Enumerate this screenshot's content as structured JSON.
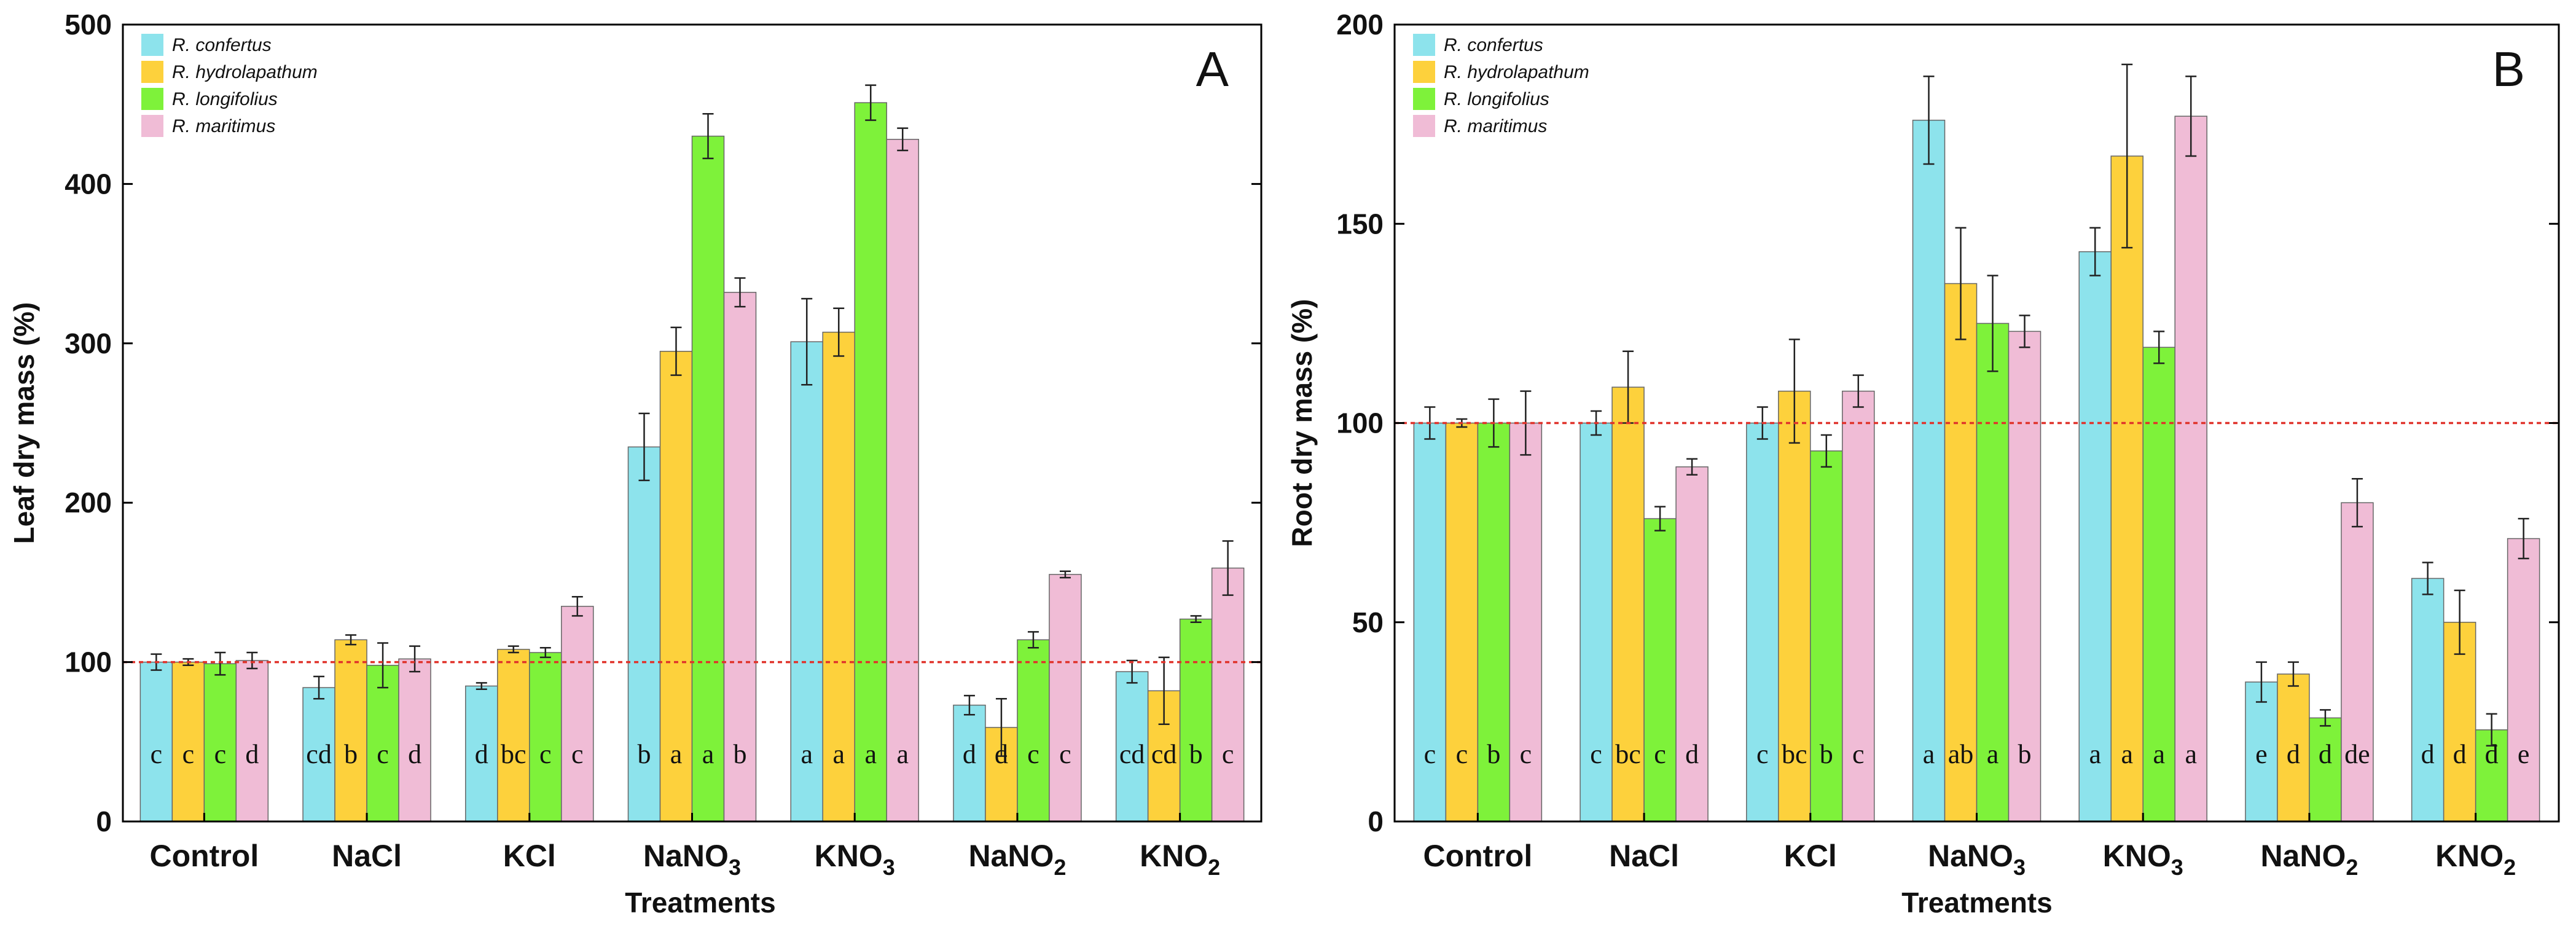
{
  "series_colors": [
    "#8de3ec",
    "#fdd13c",
    "#7ef23a",
    "#f0bcd6"
  ],
  "chart_data": [
    {
      "type": "bar",
      "panel": "A",
      "ylabel": "Leaf dry mass (%)",
      "xlabel": "Treatments",
      "ylim": [
        0,
        500
      ],
      "yticks": [
        0,
        100,
        200,
        300,
        400,
        500
      ],
      "reference_line": 100,
      "categories": [
        "Control",
        "NaCl",
        "KCl",
        "NaNO3",
        "KNO3",
        "NaNO2",
        "KNO2"
      ],
      "category_labels": [
        {
          "base": "Control",
          "sub": ""
        },
        {
          "base": "NaCl",
          "sub": ""
        },
        {
          "base": "KCl",
          "sub": ""
        },
        {
          "base": "NaNO",
          "sub": "3"
        },
        {
          "base": "KNO",
          "sub": "3"
        },
        {
          "base": "NaNO",
          "sub": "2"
        },
        {
          "base": "KNO",
          "sub": "2"
        }
      ],
      "legend_position": "top-left",
      "series": [
        {
          "name": "R. confertus",
          "values": [
            100,
            84,
            85,
            235,
            301,
            73,
            94
          ],
          "errors": [
            5,
            7,
            2,
            21,
            27,
            6,
            7
          ],
          "letters": [
            "c",
            "cd",
            "d",
            "b",
            "a",
            "d",
            "cd"
          ]
        },
        {
          "name": "R. hydrolapathum",
          "values": [
            100,
            114,
            108,
            295,
            307,
            59,
            82
          ],
          "errors": [
            2,
            3,
            2,
            15,
            15,
            18,
            21
          ],
          "letters": [
            "c",
            "b",
            "bc",
            "a",
            "a",
            "d",
            "cd"
          ]
        },
        {
          "name": "R. longifolius",
          "values": [
            99,
            98,
            106,
            430,
            451,
            114,
            127
          ],
          "errors": [
            7,
            14,
            3,
            14,
            11,
            5,
            2
          ],
          "letters": [
            "c",
            "c",
            "c",
            "a",
            "a",
            "c",
            "b"
          ]
        },
        {
          "name": "R. maritimus",
          "values": [
            101,
            102,
            135,
            332,
            428,
            155,
            159
          ],
          "errors": [
            5,
            8,
            6,
            9,
            7,
            2,
            17
          ],
          "letters": [
            "d",
            "d",
            "c",
            "b",
            "a",
            "c",
            "c"
          ]
        }
      ]
    },
    {
      "type": "bar",
      "panel": "B",
      "ylabel": "Root dry mass (%)",
      "xlabel": "Treatments",
      "ylim": [
        0,
        200
      ],
      "yticks": [
        0,
        50,
        100,
        150,
        200
      ],
      "reference_line": 100,
      "categories": [
        "Control",
        "NaCl",
        "KCl",
        "NaNO3",
        "KNO3",
        "NaNO2",
        "KNO2"
      ],
      "category_labels": [
        {
          "base": "Control",
          "sub": ""
        },
        {
          "base": "NaCl",
          "sub": ""
        },
        {
          "base": "KCl",
          "sub": ""
        },
        {
          "base": "NaNO",
          "sub": "3"
        },
        {
          "base": "KNO",
          "sub": "3"
        },
        {
          "base": "NaNO",
          "sub": "2"
        },
        {
          "base": "KNO",
          "sub": "2"
        }
      ],
      "legend_position": "top-left",
      "series": [
        {
          "name": "R. confertus",
          "values": [
            100,
            100,
            100,
            176,
            143,
            35,
            61
          ],
          "errors": [
            4,
            3,
            4,
            11,
            6,
            5,
            4
          ],
          "letters": [
            "c",
            "c",
            "c",
            "a",
            "a",
            "e",
            "d"
          ]
        },
        {
          "name": "R. hydrolapathum",
          "values": [
            100,
            109,
            108,
            135,
            167,
            37,
            50
          ],
          "errors": [
            1,
            9,
            13,
            14,
            23,
            3,
            8
          ],
          "letters": [
            "c",
            "bc",
            "bc",
            "ab",
            "a",
            "d",
            "d"
          ]
        },
        {
          "name": "R. longifolius",
          "values": [
            100,
            76,
            93,
            125,
            119,
            26,
            23
          ],
          "errors": [
            6,
            3,
            4,
            12,
            4,
            2,
            4
          ],
          "letters": [
            "b",
            "c",
            "b",
            "a",
            "a",
            "d",
            "d"
          ]
        },
        {
          "name": "R. maritimus",
          "values": [
            100,
            89,
            108,
            123,
            177,
            80,
            71
          ],
          "errors": [
            8,
            2,
            4,
            4,
            10,
            6,
            5
          ],
          "letters": [
            "c",
            "d",
            "c",
            "b",
            "a",
            "de",
            "e"
          ]
        }
      ]
    }
  ]
}
